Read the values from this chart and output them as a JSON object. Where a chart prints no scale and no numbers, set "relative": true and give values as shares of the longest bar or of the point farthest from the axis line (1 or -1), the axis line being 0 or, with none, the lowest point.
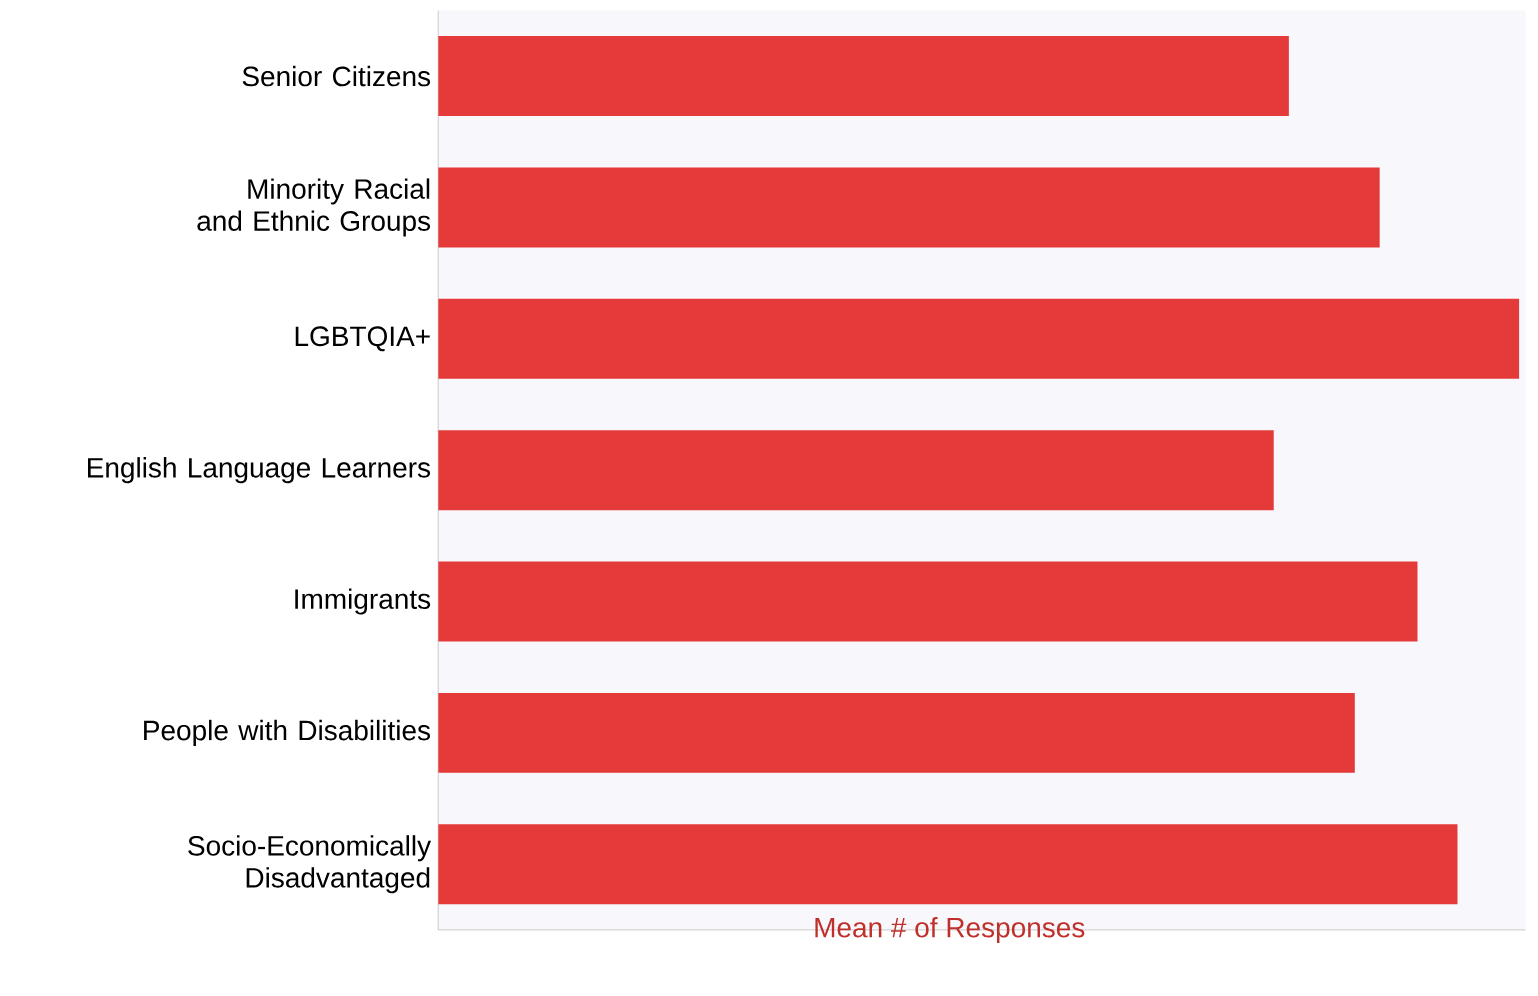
{
  "chart_data": {
    "type": "bar",
    "orientation": "horizontal",
    "relative": true,
    "xlabel": "Mean # of Responses",
    "categories": [
      "Senior Citizens",
      "Minority Racial and Ethnic Groups",
      "LGBTQIA+",
      "English Language Learners",
      "Immigrants",
      "People with Disabilities",
      "Socio-Economically Disadvantaged"
    ],
    "values": [
      0.787,
      0.871,
      1,
      0.773,
      0.906,
      0.848,
      0.943
    ],
    "color": "#e53a3a"
  }
}
